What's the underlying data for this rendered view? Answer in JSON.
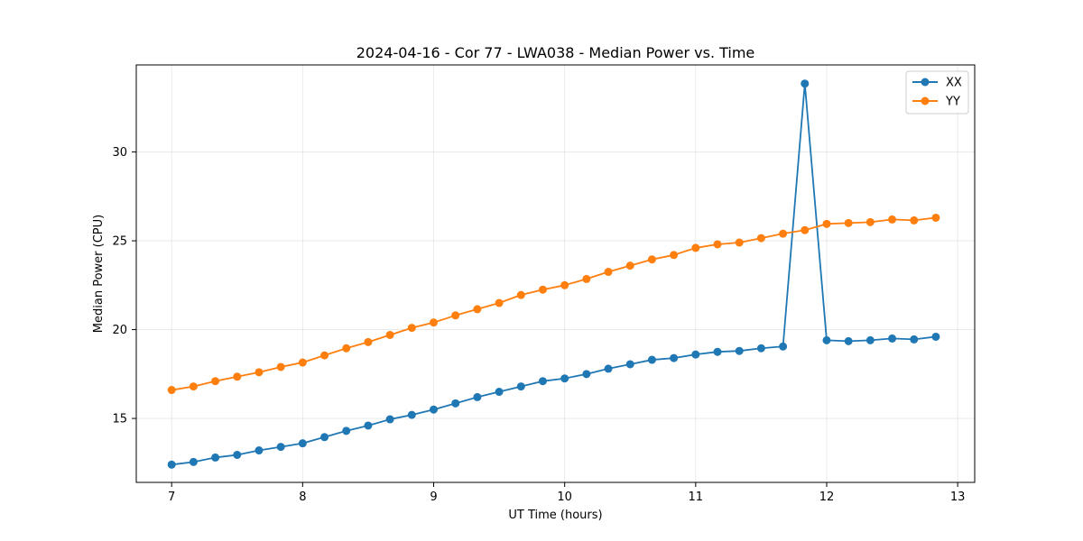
{
  "chart_data": {
    "type": "line",
    "title": "2024-04-16 - Cor 77 - LWA038 - Median Power vs. Time",
    "xlabel": "UT Time (hours)",
    "ylabel": "Median Power (CPU)",
    "xlim": [
      6.73,
      13.13
    ],
    "ylim": [
      11.4,
      34.9
    ],
    "xticks": [
      7,
      8,
      9,
      10,
      11,
      12,
      13
    ],
    "xtick_labels": [
      "7",
      "8",
      "9",
      "10",
      "11",
      "12",
      "13"
    ],
    "yticks": [
      15,
      20,
      25,
      30
    ],
    "ytick_labels": [
      "15",
      "20",
      "25",
      "30"
    ],
    "grid": true,
    "legend_position": "top-right",
    "x": [
      7.0,
      7.1667,
      7.3333,
      7.5,
      7.6667,
      7.8333,
      8.0,
      8.1667,
      8.3333,
      8.5,
      8.6667,
      8.8333,
      9.0,
      9.1667,
      9.3333,
      9.5,
      9.6667,
      9.8333,
      10.0,
      10.1667,
      10.3333,
      10.5,
      10.6667,
      10.8333,
      11.0,
      11.1667,
      11.3333,
      11.5,
      11.6667,
      11.8333,
      12.0,
      12.1667,
      12.3333,
      12.5,
      12.6667,
      12.8333
    ],
    "series": [
      {
        "name": "XX",
        "color": "#1f77b4",
        "values": [
          12.4,
          12.55,
          12.8,
          12.95,
          13.2,
          13.4,
          13.6,
          13.95,
          14.3,
          14.6,
          14.95,
          15.2,
          15.5,
          15.85,
          16.2,
          16.5,
          16.8,
          17.1,
          17.25,
          17.5,
          17.8,
          18.05,
          18.3,
          18.4,
          18.6,
          18.75,
          18.8,
          18.95,
          19.05,
          33.85,
          19.4,
          19.35,
          19.4,
          19.5,
          19.45,
          19.6
        ]
      },
      {
        "name": "YY",
        "color": "#ff7f0e",
        "values": [
          16.6,
          16.8,
          17.1,
          17.35,
          17.6,
          17.9,
          18.15,
          18.55,
          18.95,
          19.3,
          19.7,
          20.1,
          20.4,
          20.8,
          21.15,
          21.5,
          21.95,
          22.25,
          22.5,
          22.85,
          23.25,
          23.6,
          23.95,
          24.2,
          24.6,
          24.8,
          24.9,
          25.15,
          25.4,
          25.6,
          25.95,
          26.0,
          26.05,
          26.2,
          26.15,
          26.3
        ]
      }
    ]
  }
}
